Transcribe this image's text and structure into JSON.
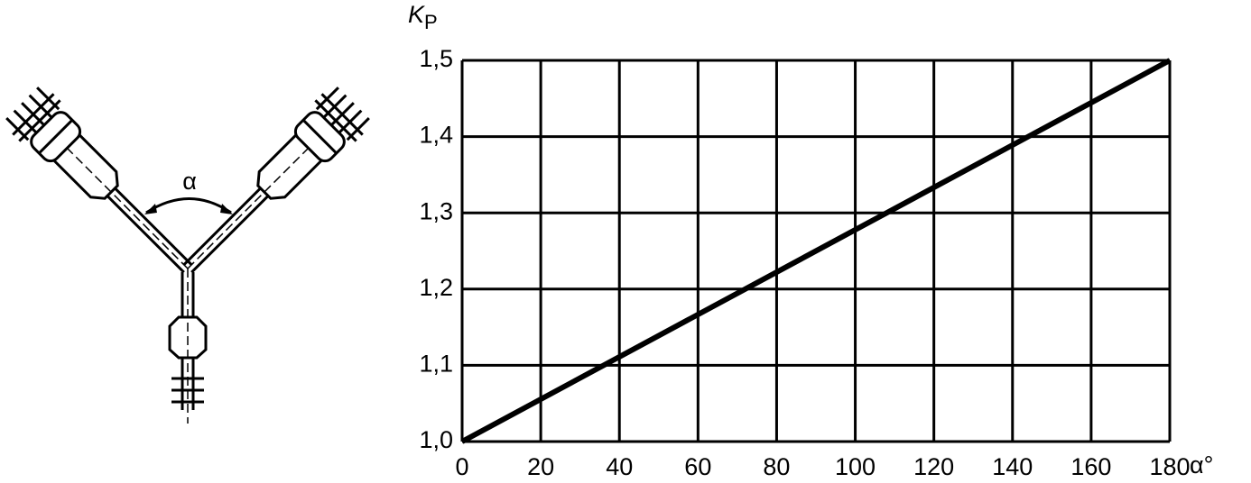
{
  "chart_data": {
    "type": "line",
    "y_label": {
      "symbol": "K",
      "subscript": "P"
    },
    "x_label": "α°",
    "annotation": "α",
    "x": [
      0,
      180
    ],
    "series": [
      {
        "values": [
          1.0,
          1.5
        ],
        "color": "#000000"
      }
    ],
    "xlim": [
      0,
      180
    ],
    "ylim": [
      1.0,
      1.5
    ],
    "xticks": [
      0,
      20,
      40,
      60,
      80,
      100,
      120,
      140,
      160,
      180
    ],
    "yticks": [
      {
        "value": 1.0,
        "label": "1,0"
      },
      {
        "value": 1.1,
        "label": "1,1"
      },
      {
        "value": 1.2,
        "label": "1,2"
      },
      {
        "value": 1.3,
        "label": "1,3"
      },
      {
        "value": 1.4,
        "label": "1,4"
      },
      {
        "value": 1.5,
        "label": "1,5"
      }
    ],
    "grid": true
  }
}
